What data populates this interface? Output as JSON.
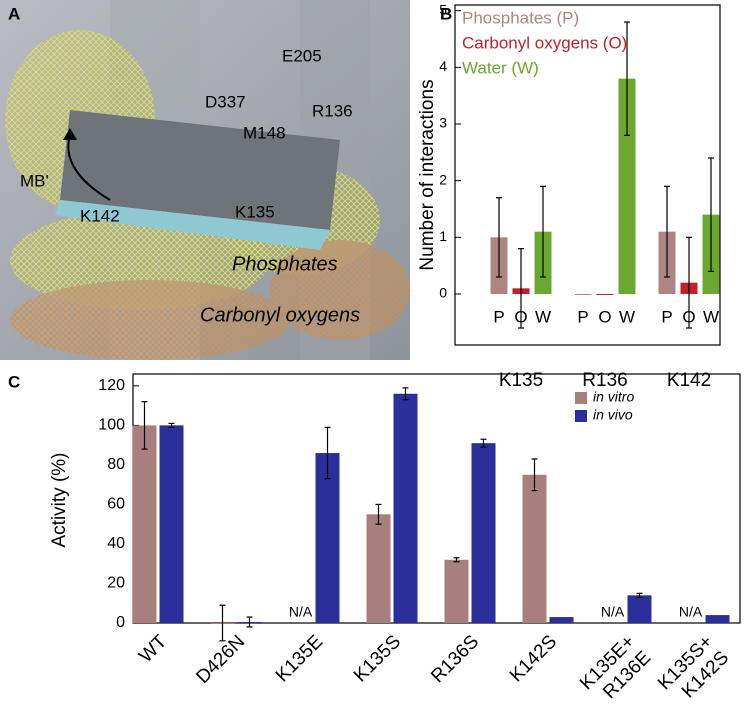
{
  "panel_a": {
    "label": "A",
    "annotations": [
      "E205",
      "D337",
      "R136",
      "M148",
      "MB'",
      "K142",
      "K135"
    ],
    "regions": [
      "Phosphates",
      "Carbonyl oxygens"
    ]
  },
  "chart_data": [
    {
      "type": "bar",
      "panel_label": "B",
      "y_label": "Number of interactions",
      "categories": [
        "K135",
        "R136",
        "K142"
      ],
      "bar_labels": [
        "P",
        "O",
        "W"
      ],
      "series": [
        {
          "name": "Phosphates (P)",
          "color": "#ae8580",
          "values": [
            1.0,
            0.0,
            1.1
          ],
          "errors": [
            0.7,
            null,
            0.8
          ]
        },
        {
          "name": "Carbonyl oxygens (O)",
          "color": "#c4202b",
          "values": [
            0.1,
            0.0,
            0.2
          ],
          "errors": [
            0.7,
            null,
            0.8
          ]
        },
        {
          "name": "Water (W)",
          "color": "#6ba82f",
          "values": [
            1.1,
            3.8,
            1.4
          ],
          "errors": [
            0.8,
            1.0,
            1.0
          ]
        }
      ],
      "ylim": [
        -0.9,
        5.1
      ],
      "yticks": [
        0,
        1,
        2,
        3,
        4,
        5
      ],
      "legend": "upper left"
    },
    {
      "type": "bar",
      "panel_label": "C",
      "y_label": "Activity (%)",
      "categories": [
        "WT",
        "D426N",
        "K135E",
        "K135S",
        "R136S",
        "K142S",
        [
          "K135E+",
          "R136E"
        ],
        [
          "K135S+",
          "K142S"
        ]
      ],
      "series": [
        {
          "name": "in vitro",
          "color": "#a87f7c",
          "values": [
            100,
            0,
            null,
            55,
            32,
            75,
            null,
            null
          ],
          "errors": [
            12,
            9,
            null,
            5,
            1,
            8,
            null,
            null
          ],
          "value_labels": [
            null,
            null,
            "N/A",
            null,
            null,
            null,
            "N/A",
            "N/A"
          ]
        },
        {
          "name": "in vivo",
          "color": "#2b2f9c",
          "values": [
            100,
            0.5,
            86,
            116,
            91,
            3,
            14,
            4
          ],
          "errors": [
            1,
            2.5,
            13,
            3,
            2,
            null,
            1,
            null
          ]
        }
      ],
      "ylim": [
        0,
        126
      ],
      "yticks": [
        0,
        20,
        40,
        60,
        80,
        100,
        120
      ],
      "legend": "upper right"
    }
  ]
}
